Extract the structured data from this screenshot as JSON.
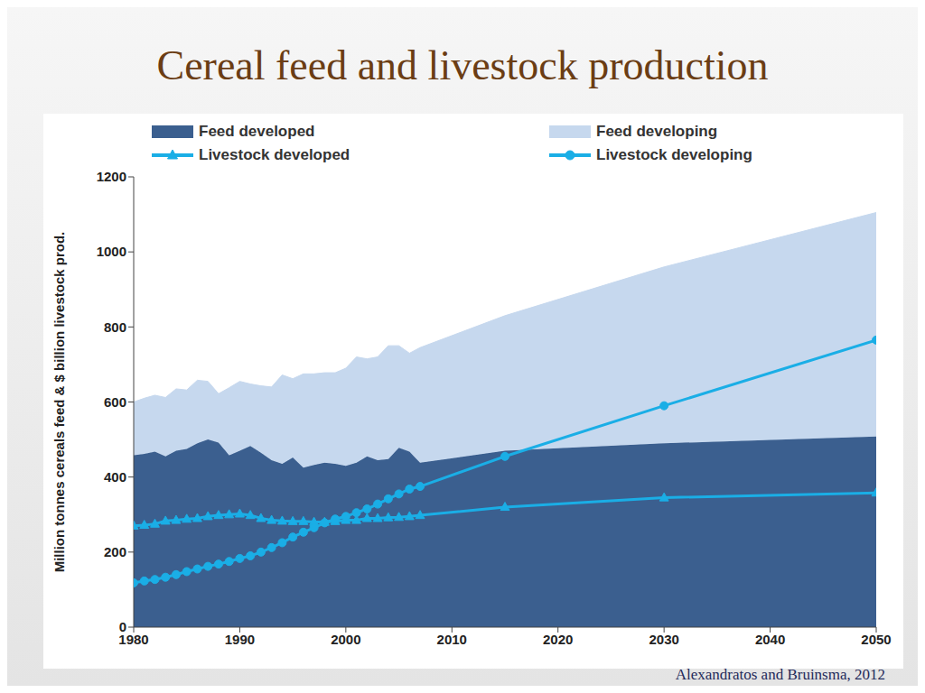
{
  "chart_data": {
    "type": "area",
    "title": "Cereal feed and livestock production",
    "source": "Alexandratos and Bruinsma, 2012",
    "y_label": "Million tonnes cereals feed & $ billion livestock prod.",
    "x": [
      1980,
      1981,
      1982,
      1983,
      1984,
      1985,
      1986,
      1987,
      1988,
      1989,
      1990,
      1991,
      1992,
      1993,
      1994,
      1995,
      1996,
      1997,
      1998,
      1999,
      2000,
      2001,
      2002,
      2003,
      2004,
      2005,
      2006,
      2007,
      2015,
      2030,
      2050
    ],
    "xlim": [
      1980,
      2050
    ],
    "xticks": [
      1980,
      1990,
      2000,
      2010,
      2020,
      2030,
      2040,
      2050
    ],
    "ylim": [
      0,
      1200
    ],
    "yticks": [
      0,
      200,
      400,
      600,
      800,
      1000,
      1200
    ],
    "grid": false,
    "stacked": true,
    "legend": "top",
    "series": [
      {
        "name": "Feed developed",
        "type": "area",
        "color": "#3b5f8f",
        "values": [
          458,
          462,
          468,
          455,
          470,
          475,
          490,
          500,
          492,
          458,
          470,
          483,
          465,
          445,
          435,
          452,
          425,
          432,
          438,
          435,
          430,
          438,
          455,
          445,
          448,
          478,
          468,
          438,
          470,
          490,
          508
        ]
      },
      {
        "name": "Feed developing",
        "type": "area",
        "color": "#c6d8ee",
        "values": [
          142,
          148,
          150,
          157,
          165,
          157,
          168,
          155,
          130,
          180,
          185,
          165,
          178,
          195,
          237,
          210,
          250,
          243,
          240,
          243,
          260,
          282,
          260,
          275,
          302,
          272,
          262,
          307,
          360,
          470,
          597
        ]
      },
      {
        "name": "Livestock developed",
        "type": "line",
        "color": "#1aaee6",
        "marker": "triangle",
        "values": [
          270,
          272,
          275,
          283,
          285,
          288,
          290,
          295,
          298,
          300,
          302,
          298,
          290,
          285,
          283,
          282,
          282,
          280,
          280,
          282,
          285,
          285,
          290,
          290,
          292,
          293,
          295,
          298,
          320,
          345,
          358
        ]
      },
      {
        "name": "Livestock developing",
        "type": "line",
        "color": "#1aaee6",
        "marker": "circle",
        "values": [
          118,
          123,
          127,
          133,
          140,
          148,
          155,
          162,
          168,
          175,
          183,
          190,
          200,
          212,
          225,
          240,
          253,
          265,
          278,
          288,
          295,
          305,
          315,
          328,
          342,
          355,
          368,
          375,
          455,
          590,
          765
        ]
      }
    ]
  }
}
